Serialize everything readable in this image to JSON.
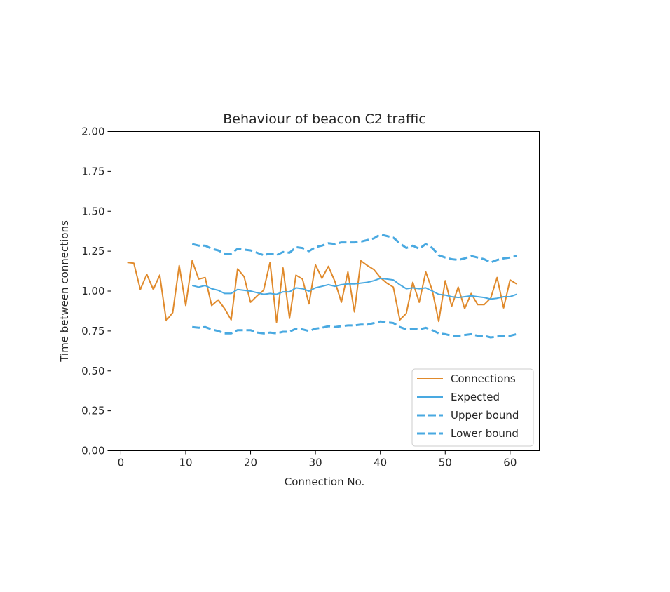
{
  "chart_data": {
    "type": "line",
    "title": "Behaviour of beacon C2 traffic",
    "xlabel": "Connection No.",
    "ylabel": "Time between connections",
    "xlim": [
      -1.5,
      64.5
    ],
    "ylim": [
      0,
      2
    ],
    "x_ticks": [
      0,
      10,
      20,
      30,
      40,
      50,
      60
    ],
    "x_tick_labels": [
      "0",
      "10",
      "20",
      "30",
      "40",
      "50",
      "60"
    ],
    "y_ticks": [
      0,
      0.25,
      0.5,
      0.75,
      1.0,
      1.25,
      1.5,
      1.75,
      2.0
    ],
    "y_tick_labels": [
      "0.00",
      "0.25",
      "0.50",
      "0.75",
      "1.00",
      "1.25",
      "1.50",
      "1.75",
      "2.00"
    ],
    "grid": false,
    "legend_position": "lower-right",
    "series": [
      {
        "name": "Connections",
        "color": "#e08a2c",
        "style": "solid",
        "x": [
          1,
          2,
          3,
          4,
          5,
          6,
          7,
          8,
          9,
          10,
          11,
          12,
          13,
          14,
          15,
          16,
          17,
          18,
          19,
          20,
          21,
          22,
          23,
          24,
          25,
          26,
          27,
          28,
          29,
          30,
          31,
          32,
          33,
          34,
          35,
          36,
          37,
          38,
          39,
          40,
          41,
          42,
          43,
          44,
          45,
          46,
          47,
          48,
          49,
          50,
          51,
          52,
          53,
          54,
          55,
          56,
          57,
          58,
          59,
          60,
          61
        ],
        "values": [
          1.18,
          1.175,
          1.01,
          1.105,
          1.01,
          1.1,
          0.815,
          0.865,
          1.16,
          0.91,
          1.19,
          1.075,
          1.085,
          0.91,
          0.945,
          0.89,
          0.82,
          1.14,
          1.09,
          0.93,
          0.97,
          1.005,
          1.18,
          0.805,
          1.145,
          0.83,
          1.1,
          1.075,
          0.92,
          1.165,
          1.08,
          1.155,
          1.06,
          0.93,
          1.12,
          0.87,
          1.19,
          1.16,
          1.135,
          1.085,
          1.05,
          1.025,
          0.82,
          0.86,
          1.055,
          0.93,
          1.12,
          1.005,
          0.81,
          1.065,
          0.905,
          1.025,
          0.89,
          0.985,
          0.915,
          0.915,
          0.955,
          1.085,
          0.895,
          1.07,
          1.045
        ]
      },
      {
        "name": "Expected",
        "color": "#49a9e1",
        "style": "solid",
        "x": [
          11,
          12,
          13,
          14,
          15,
          16,
          17,
          18,
          19,
          20,
          21,
          22,
          23,
          24,
          25,
          26,
          27,
          28,
          29,
          30,
          31,
          32,
          33,
          34,
          35,
          36,
          37,
          38,
          39,
          40,
          41,
          42,
          43,
          44,
          45,
          46,
          47,
          48,
          49,
          50,
          51,
          52,
          53,
          54,
          55,
          56,
          57,
          58,
          59,
          60,
          61
        ],
        "values": [
          1.035,
          1.025,
          1.035,
          1.015,
          1.005,
          0.985,
          0.985,
          1.01,
          1.005,
          1.0,
          0.99,
          0.98,
          0.985,
          0.98,
          0.995,
          0.995,
          1.02,
          1.015,
          1.0,
          1.02,
          1.03,
          1.04,
          1.03,
          1.04,
          1.045,
          1.045,
          1.05,
          1.055,
          1.065,
          1.08,
          1.075,
          1.07,
          1.04,
          1.015,
          1.02,
          1.015,
          1.02,
          1.0,
          0.98,
          0.975,
          0.965,
          0.96,
          0.965,
          0.97,
          0.965,
          0.96,
          0.95,
          0.955,
          0.965,
          0.965,
          0.98
        ]
      },
      {
        "name": "Upper bound",
        "color": "#49a9e1",
        "style": "dashed",
        "x": [
          11,
          12,
          13,
          14,
          15,
          16,
          17,
          18,
          19,
          20,
          21,
          22,
          23,
          24,
          25,
          26,
          27,
          28,
          29,
          30,
          31,
          32,
          33,
          34,
          35,
          36,
          37,
          38,
          39,
          40,
          41,
          42,
          43,
          44,
          45,
          46,
          47,
          48,
          49,
          50,
          51,
          52,
          53,
          54,
          55,
          56,
          57,
          58,
          59,
          60,
          61
        ],
        "values": [
          1.295,
          1.285,
          1.285,
          1.265,
          1.255,
          1.235,
          1.235,
          1.265,
          1.26,
          1.255,
          1.24,
          1.225,
          1.235,
          1.225,
          1.245,
          1.24,
          1.275,
          1.27,
          1.25,
          1.275,
          1.285,
          1.3,
          1.295,
          1.305,
          1.305,
          1.305,
          1.31,
          1.32,
          1.33,
          1.355,
          1.345,
          1.335,
          1.3,
          1.27,
          1.285,
          1.265,
          1.295,
          1.27,
          1.225,
          1.21,
          1.2,
          1.195,
          1.205,
          1.22,
          1.21,
          1.2,
          1.18,
          1.195,
          1.205,
          1.21,
          1.22
        ]
      },
      {
        "name": "Lower bound",
        "color": "#49a9e1",
        "style": "dashed",
        "x": [
          11,
          12,
          13,
          14,
          15,
          16,
          17,
          18,
          19,
          20,
          21,
          22,
          23,
          24,
          25,
          26,
          27,
          28,
          29,
          30,
          31,
          32,
          33,
          34,
          35,
          36,
          37,
          38,
          39,
          40,
          41,
          42,
          43,
          44,
          45,
          46,
          47,
          48,
          49,
          50,
          51,
          52,
          53,
          54,
          55,
          56,
          57,
          58,
          59,
          60,
          61
        ],
        "values": [
          0.775,
          0.77,
          0.775,
          0.76,
          0.75,
          0.735,
          0.735,
          0.755,
          0.755,
          0.755,
          0.74,
          0.735,
          0.74,
          0.735,
          0.745,
          0.745,
          0.765,
          0.76,
          0.75,
          0.765,
          0.77,
          0.78,
          0.775,
          0.78,
          0.785,
          0.785,
          0.79,
          0.79,
          0.8,
          0.81,
          0.805,
          0.8,
          0.775,
          0.76,
          0.765,
          0.76,
          0.77,
          0.755,
          0.735,
          0.73,
          0.72,
          0.72,
          0.725,
          0.73,
          0.72,
          0.72,
          0.71,
          0.715,
          0.72,
          0.72,
          0.73
        ]
      }
    ]
  }
}
